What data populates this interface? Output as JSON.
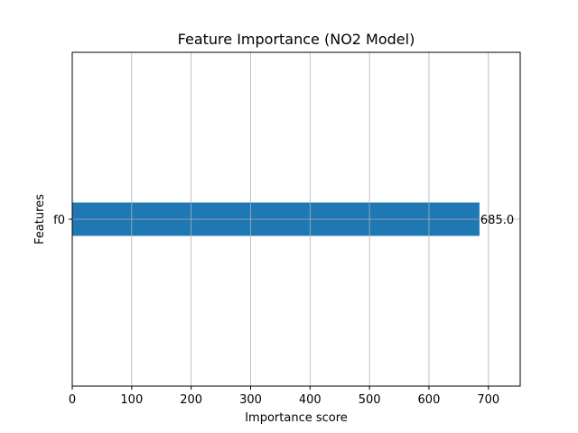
{
  "chart_data": {
    "type": "bar",
    "orientation": "horizontal",
    "title": "Feature Importance (NO2 Model)",
    "xlabel": "Importance score",
    "ylabel": "Features",
    "categories": [
      "f0"
    ],
    "values": [
      685.0
    ],
    "value_labels": [
      "685.0"
    ],
    "xlim": [
      0,
      753.5
    ],
    "xticks": [
      0,
      100,
      200,
      300,
      400,
      500,
      600,
      700
    ],
    "grid": true,
    "bar_color": "#1f77b4"
  }
}
